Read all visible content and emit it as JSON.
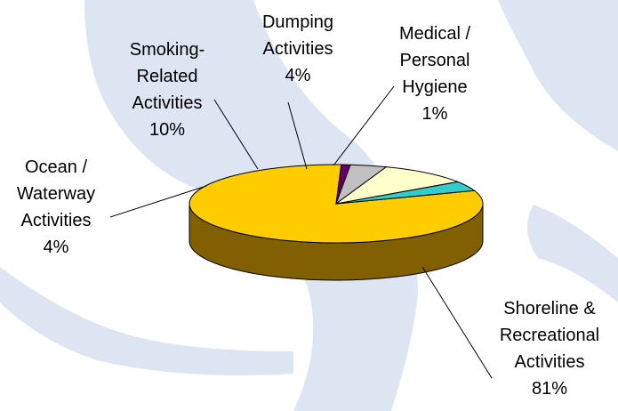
{
  "chart_data": {
    "type": "pie",
    "style": "3d",
    "title": "",
    "slices": [
      {
        "label_lines": [
          "Shoreline &",
          "Recreational",
          "Activities"
        ],
        "value": 81,
        "percent_label": "81%",
        "color": "#ffcc00"
      },
      {
        "label_lines": [
          "Medical /",
          "Personal",
          "Hygiene"
        ],
        "value": 1,
        "percent_label": "1%",
        "color": "#660066"
      },
      {
        "label_lines": [
          "Dumping",
          "Activities"
        ],
        "value": 4,
        "percent_label": "4%",
        "color": "#c0c0c0"
      },
      {
        "label_lines": [
          "Smoking-",
          "Related",
          "Activities"
        ],
        "value": 10,
        "percent_label": "10%",
        "color": "#ffffcc"
      },
      {
        "label_lines": [
          "Ocean /",
          "Waterway",
          "Activities"
        ],
        "value": 4,
        "percent_label": "4%",
        "color": "#33cccc"
      }
    ],
    "side_color": "#806000",
    "background_watermark_color": "#dde5f3",
    "legend": "none",
    "label_placement": "outside-with-leader-lines"
  }
}
